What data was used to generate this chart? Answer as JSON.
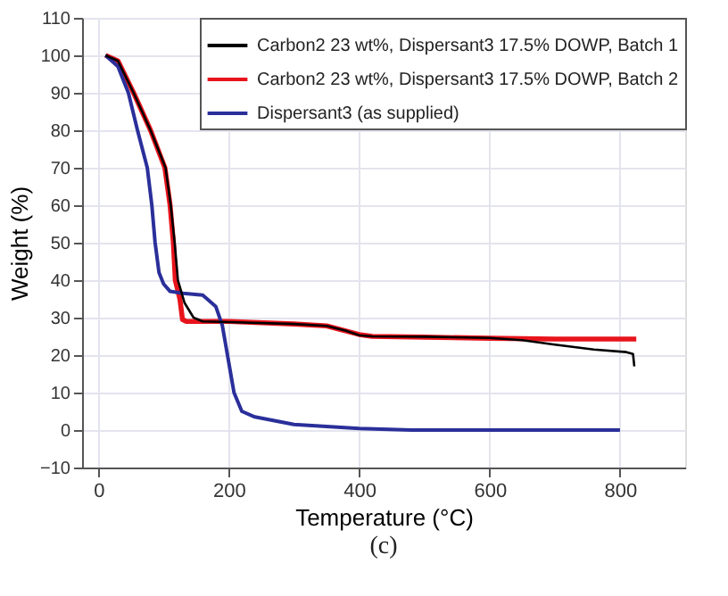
{
  "chart_data": {
    "type": "line",
    "xlabel": "Temperature (°C)",
    "ylabel": "Weight (%)",
    "annotations": [
      "(c)"
    ],
    "xlim": [
      -25,
      900
    ],
    "xticks": [
      0,
      200,
      400,
      600,
      800
    ],
    "ylim": [
      -10,
      110
    ],
    "yticks": [
      -10,
      0,
      10,
      20,
      30,
      40,
      50,
      60,
      70,
      80,
      90,
      100,
      110
    ],
    "grid": true,
    "legend": "top right",
    "line_style": "solid",
    "marker": "none",
    "series": [
      {
        "name": "Carbon2 23 wt%, Dispersant3 17.5% DOWP, Batch 1",
        "color": "#000000",
        "x": [
          11,
          30,
          54,
          80,
          103,
          111,
          117,
          122,
          132,
          146,
          160,
          200,
          300,
          350,
          380,
          400,
          420,
          500,
          600,
          650,
          700,
          760,
          810,
          820,
          822
        ],
        "values": [
          100,
          98.5,
          90,
          80,
          70,
          60,
          50,
          40,
          34,
          30,
          29,
          28.8,
          28.3,
          27.8,
          26.5,
          25.3,
          25,
          24.9,
          24.6,
          24,
          22.8,
          21.5,
          20.8,
          20.3,
          17
        ]
      },
      {
        "name": "Carbon2 23 wt%, Dispersant3 17.5% DOWP, Batch 2",
        "color": "#e8141c",
        "x": [
          11,
          30,
          54,
          80,
          102,
          110,
          115,
          118,
          125,
          129,
          135,
          200,
          300,
          350,
          400,
          420,
          500,
          600,
          700,
          825
        ],
        "values": [
          100,
          98.5,
          90,
          80,
          70,
          60,
          50,
          40,
          35,
          29.5,
          29,
          29,
          28.3,
          27.8,
          25.5,
          25,
          24.8,
          24.5,
          24.3,
          24.3
        ]
      },
      {
        "name": "Dispersant3 (as supplied)",
        "color": "#2a2f9a",
        "x": [
          11,
          30,
          46,
          60,
          75,
          82,
          87,
          93,
          100,
          110,
          130,
          160,
          180,
          190,
          200,
          208,
          220,
          240,
          300,
          400,
          480,
          800
        ],
        "values": [
          100,
          97,
          90,
          80,
          70,
          60,
          50,
          42,
          39,
          37,
          36.5,
          36,
          33,
          28,
          18,
          10,
          5,
          3.5,
          1.5,
          0.4,
          0,
          0
        ]
      }
    ]
  }
}
